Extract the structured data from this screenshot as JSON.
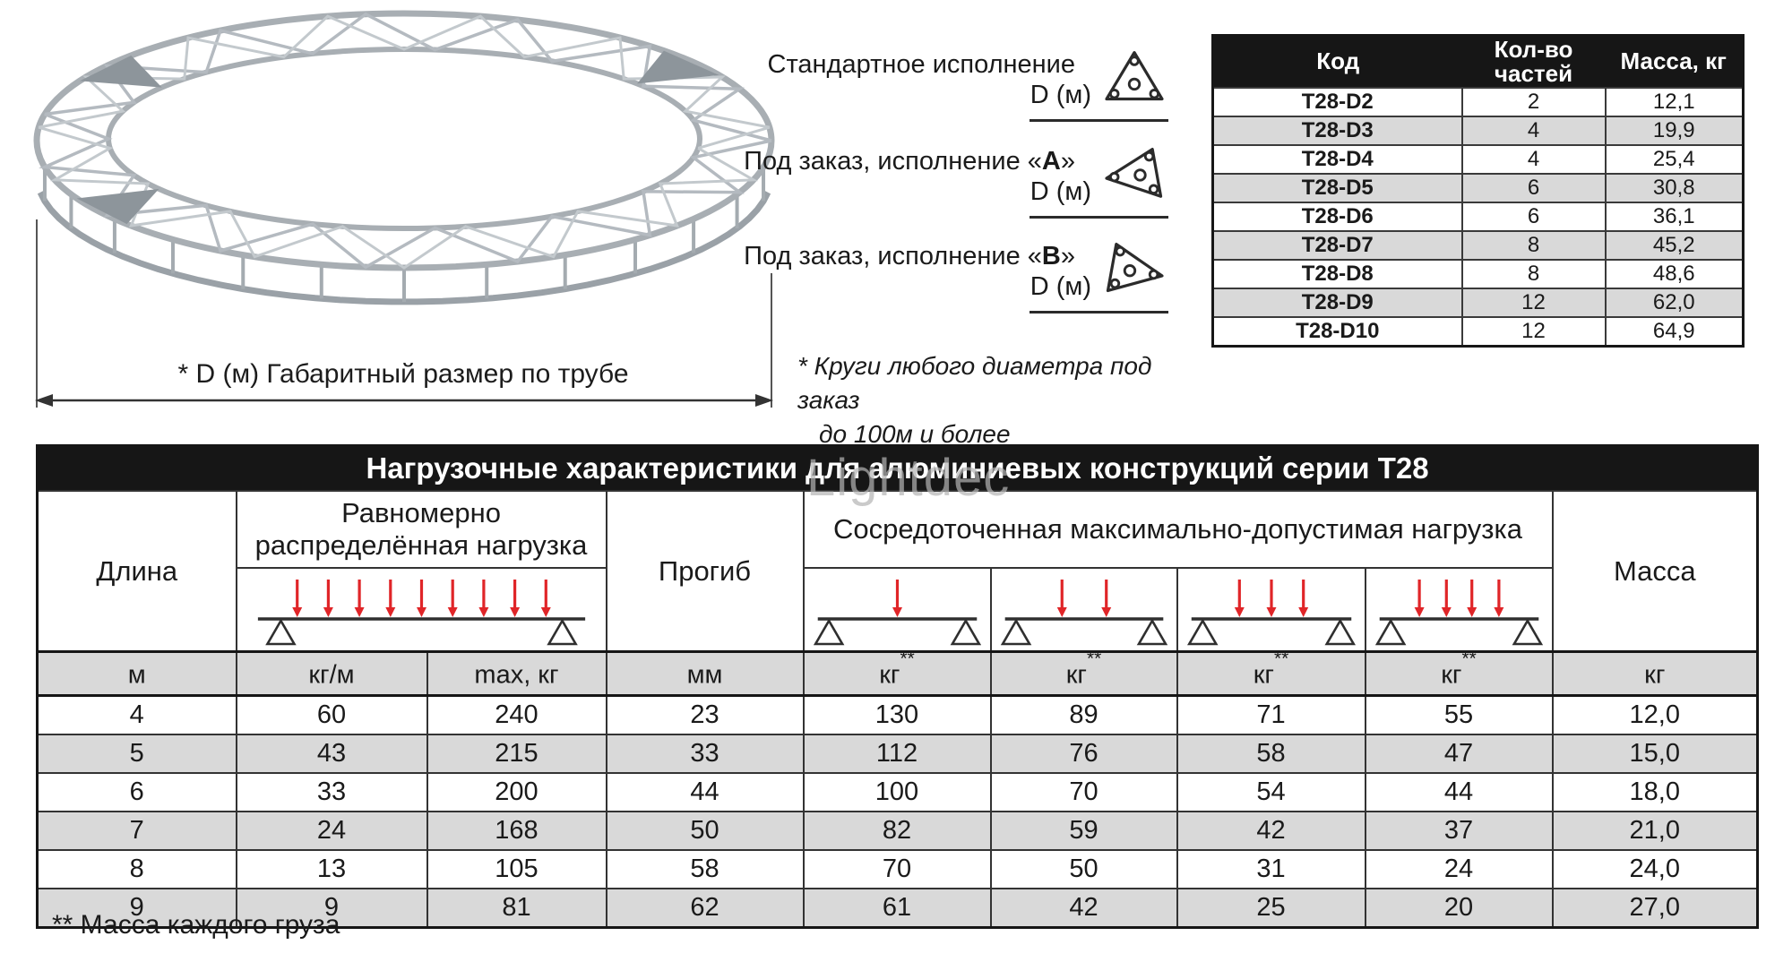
{
  "top": {
    "truss_caption": "* D (м)  Габаритный размер по трубе",
    "versions": [
      {
        "pre": "Стандартное исполнение",
        "bold": "",
        "post": "",
        "dim": "D (м)",
        "icon": "triangle-up-section-icon"
      },
      {
        "pre": "Под заказ, исполнение «",
        "bold": "А",
        "post": "»",
        "dim": "D (м)",
        "icon": "triangle-left-section-icon"
      },
      {
        "pre": "Под заказ, исполнение «",
        "bold": "В",
        "post": "»",
        "dim": "D (м)",
        "icon": "triangle-right-section-icon"
      }
    ],
    "note_line1": "* Круги любого диаметра под заказ",
    "note_line2": "до 100м и более"
  },
  "parts_table": {
    "headers": [
      "Код",
      "Кол-во частей",
      "Масса, кг"
    ],
    "rows": [
      [
        "T28-D2",
        "2",
        "12,1"
      ],
      [
        "T28-D3",
        "4",
        "19,9"
      ],
      [
        "T28-D4",
        "4",
        "25,4"
      ],
      [
        "T28-D5",
        "6",
        "30,8"
      ],
      [
        "T28-D6",
        "6",
        "36,1"
      ],
      [
        "T28-D7",
        "8",
        "45,2"
      ],
      [
        "T28-D8",
        "8",
        "48,6"
      ],
      [
        "T28-D9",
        "12",
        "62,0"
      ],
      [
        "T28-D10",
        "12",
        "64,9"
      ]
    ]
  },
  "load_table": {
    "title": "Нагрузочные характеристики для алюминиевых конструкций серии Т28",
    "col_length": "Длина",
    "uniform_line1": "Равномерно",
    "uniform_line2": "распределённая нагрузка",
    "col_deflection": "Прогиб",
    "col_concentrated": "Сосредоточенная максимально-допустимая нагрузка",
    "col_mass": "Масса",
    "diagrams": {
      "uniform": {
        "arrows": 9
      },
      "concentrated": [
        {
          "arrows": 1
        },
        {
          "arrows": 2
        },
        {
          "arrows": 3
        },
        {
          "arrows": 4
        }
      ]
    },
    "units": [
      {
        "t": "м"
      },
      {
        "t": "кг/м"
      },
      {
        "t": "max, кг"
      },
      {
        "t": "мм"
      },
      {
        "t": "кг",
        "sup": "**"
      },
      {
        "t": "кг",
        "sup": "**"
      },
      {
        "t": "кг",
        "sup": "**"
      },
      {
        "t": "кг",
        "sup": "**"
      },
      {
        "t": "кг"
      }
    ],
    "rows": [
      [
        "4",
        "60",
        "240",
        "23",
        "130",
        "89",
        "71",
        "55",
        "12,0"
      ],
      [
        "5",
        "43",
        "215",
        "33",
        "112",
        "76",
        "58",
        "47",
        "15,0"
      ],
      [
        "6",
        "33",
        "200",
        "44",
        "100",
        "70",
        "54",
        "44",
        "18,0"
      ],
      [
        "7",
        "24",
        "168",
        "50",
        "82",
        "59",
        "42",
        "37",
        "21,0"
      ],
      [
        "8",
        "13",
        "105",
        "58",
        "70",
        "50",
        "31",
        "24",
        "24,0"
      ],
      [
        "9",
        "9",
        "81",
        "62",
        "61",
        "42",
        "25",
        "20",
        "27,0"
      ]
    ],
    "footnote": "** Масса каждого груза"
  },
  "watermark": "Lightdec",
  "icons": [
    "triangle-up-section-icon",
    "triangle-left-section-icon",
    "triangle-right-section-icon",
    "load-diagram",
    "ring-truss-illustration"
  ],
  "colors": {
    "header_black": "#161616",
    "row_gray": "#d9d9d9",
    "arrow_red": "#e02528",
    "truss_gray": "#a8aeb3"
  }
}
